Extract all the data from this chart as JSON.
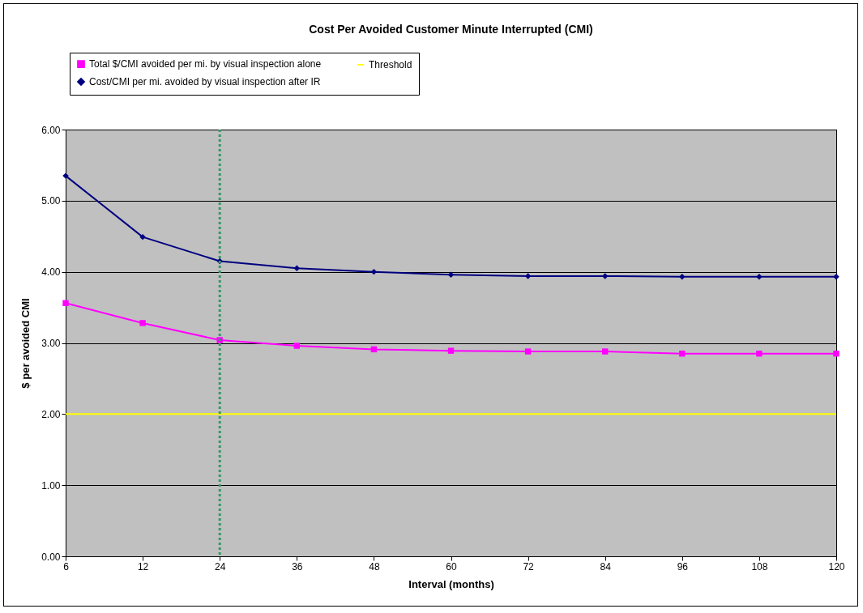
{
  "chart_data": {
    "type": "line",
    "title": "Cost Per Avoided Customer Minute Interrupted (CMI)",
    "xlabel": "Interval (months)",
    "ylabel": "$ per avoided CMI",
    "categories": [
      "6",
      "12",
      "24",
      "36",
      "48",
      "60",
      "72",
      "84",
      "96",
      "108",
      "120"
    ],
    "series": [
      {
        "name": "Total $/CMI avoided per mi. by visual inspection alone",
        "color": "#ff00ff",
        "marker": "square",
        "values": [
          3.56,
          3.28,
          3.04,
          2.96,
          2.91,
          2.89,
          2.88,
          2.88,
          2.85,
          2.85,
          2.85
        ]
      },
      {
        "name": "Threshold",
        "color": "#ffff00",
        "marker": "none",
        "values": [
          2,
          2,
          2,
          2,
          2,
          2,
          2,
          2,
          2,
          2,
          2
        ]
      },
      {
        "name": "Cost/CMI per mi. avoided by visual inspection after IR",
        "color": "#000080",
        "marker": "diamond",
        "values": [
          5.35,
          4.49,
          4.15,
          4.05,
          4.0,
          3.96,
          3.94,
          3.94,
          3.93,
          3.93,
          3.93
        ]
      }
    ],
    "ylim": [
      0,
      6
    ],
    "yticks": [
      {
        "value": 0,
        "label": "0.00"
      },
      {
        "value": 1,
        "label": "1.00"
      },
      {
        "value": 2,
        "label": "2.00"
      },
      {
        "value": 3,
        "label": "3.00"
      },
      {
        "value": 4,
        "label": "4.00"
      },
      {
        "value": 5,
        "label": "5.00"
      },
      {
        "value": 6,
        "label": "6.00"
      }
    ],
    "grid": "y",
    "legend": "top",
    "ref_lines": [
      {
        "axis": "x",
        "value": "24",
        "color": "#339966",
        "line_style": "dotted"
      }
    ]
  }
}
